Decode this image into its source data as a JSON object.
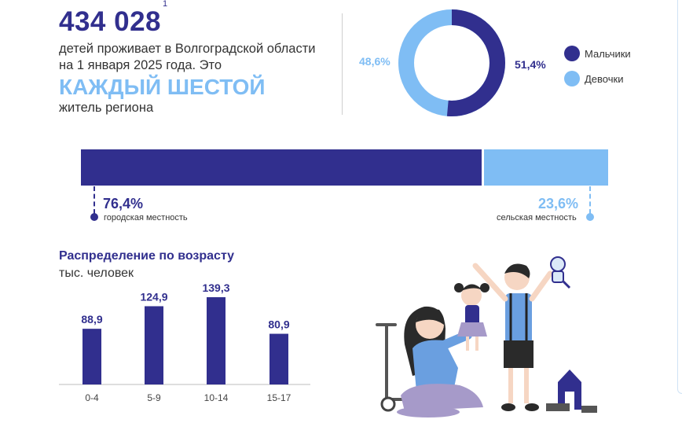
{
  "header": {
    "total_children": "434 028",
    "footnote": "1",
    "intro_line1": "детей проживает в Волгоградской области",
    "intro_line2": "на 1 января 2025 года. Это",
    "highlight": "КАЖДЫЙ ШЕСТОЙ",
    "subline": "житель региона"
  },
  "gender": {
    "boys_pct": "51,4%",
    "girls_pct": "48,6%",
    "boys_label": "Мальчики",
    "girls_label": "Девочки",
    "boys_value": 51.4,
    "girls_value": 48.6,
    "boys_color": "#312f8e",
    "girls_color": "#7fbdf4"
  },
  "residence": {
    "urban_pct": "76,4%",
    "urban_label": "городская местность",
    "urban_value": 76.4,
    "rural_pct": "23,6%",
    "rural_label": "сельская местность",
    "rural_value": 23.6
  },
  "chart_data": {
    "type": "bar",
    "title": "Распределение по возрасту",
    "ylabel": "тыс. человек",
    "xlabel": "",
    "categories": [
      "0-4",
      "5-9",
      "10-14",
      "15-17"
    ],
    "values": [
      88.9,
      124.9,
      139.3,
      80.9
    ],
    "value_labels": [
      "88,9",
      "124,9",
      "139,3",
      "80,9"
    ],
    "ylim": [
      0,
      150
    ],
    "bar_color": "#312f8e",
    "grid": false,
    "legend": "none"
  },
  "illustration": {
    "description_icon": "family-playing-icon"
  }
}
